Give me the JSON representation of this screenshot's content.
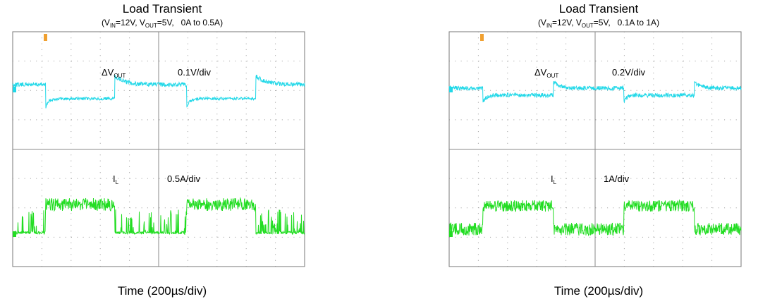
{
  "panels": [
    {
      "title": "Load Transient",
      "subtitle": [
        "(V",
        "IN",
        "=12V, V",
        "OUT",
        "=5V,   0A to 0.5A)"
      ],
      "voltage_label": [
        "ΔV",
        "OUT"
      ],
      "voltage_scale": "0.1V/div",
      "current_label": [
        "I",
        "L"
      ],
      "current_scale": "0.5A/div",
      "x_label": "Time (200µs/div)"
    },
    {
      "title": "Load Transient",
      "subtitle": [
        "(V",
        "IN",
        "=12V, V",
        "OUT",
        "=5V,   0.1A to 1A)"
      ],
      "voltage_label": [
        "ΔV",
        "OUT"
      ],
      "voltage_scale": "0.2V/div",
      "current_label": [
        "I",
        "L"
      ],
      "current_scale": "1A/div",
      "x_label": "Time (200µs/div)"
    }
  ]
}
